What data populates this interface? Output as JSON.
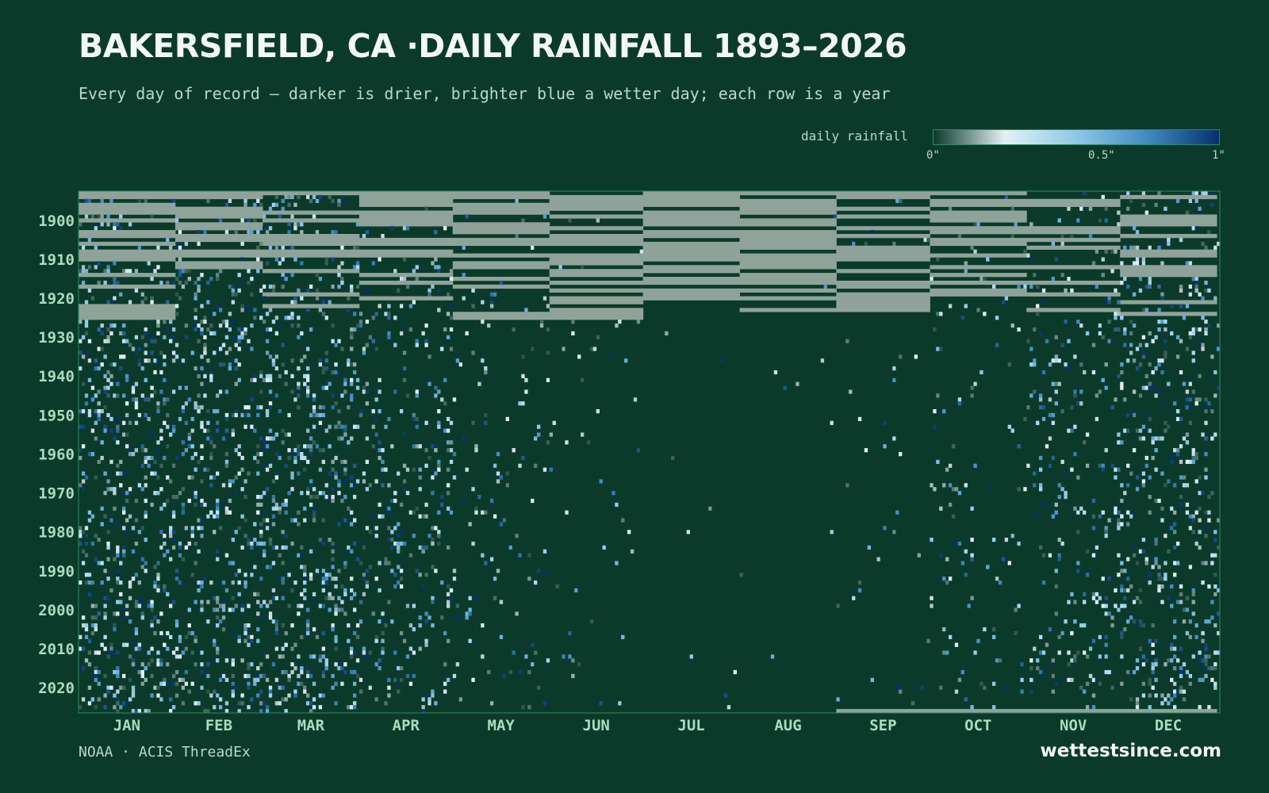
{
  "title": "BAKERSFIELD, CA ·DAILY RAINFALL 1893–2026",
  "subtitle": "Every day of record — darker is drier, brighter blue a wetter day; each row is a year",
  "legend": {
    "label": "daily rainfall",
    "ticks": [
      "0\"",
      "0.5\"",
      "1\""
    ],
    "tick_values": [
      0,
      0.5,
      1
    ]
  },
  "source": "NOAA · ACIS ThreadEx",
  "brand": "wettestsince.com",
  "colors": {
    "background": "#0b3a2a",
    "missing": "#8fa39a",
    "scale": [
      "#0b3a2a",
      "#e3f1f6",
      "#8ec8e6",
      "#3f8bc0",
      "#08306b"
    ],
    "frame": "#2f8a63"
  },
  "chart_data": {
    "type": "heatmap",
    "title": "BAKERSFIELD, CA ·DAILY RAINFALL 1893–2026",
    "x_label": "",
    "y_label": "",
    "x_categories": [
      "JAN",
      "FEB",
      "MAR",
      "APR",
      "MAY",
      "JUN",
      "JUL",
      "AUG",
      "SEP",
      "OCT",
      "NOV",
      "DEC"
    ],
    "y_range": [
      1893,
      2026
    ],
    "y_ticks": [
      1900,
      1910,
      1920,
      1930,
      1940,
      1950,
      1960,
      1970,
      1980,
      1990,
      2000,
      2010,
      2020
    ],
    "value_unit": "inches",
    "value_range": [
      0,
      1
    ],
    "monthly_wet_day_probability": [
      0.16,
      0.15,
      0.15,
      0.09,
      0.035,
      0.012,
      0.003,
      0.004,
      0.012,
      0.035,
      0.075,
      0.13
    ],
    "missing_data_note": "grey blocks mark missing records, concentrated 1893–1925 and late 2025–2026",
    "legend_position": "top-right"
  }
}
